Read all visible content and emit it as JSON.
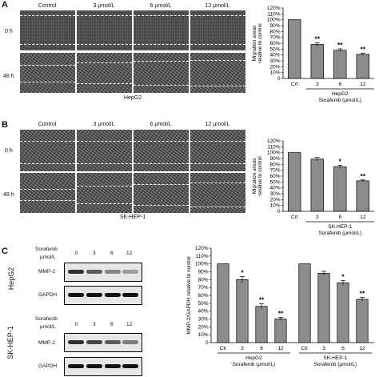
{
  "panels": {
    "A": {
      "letter": "A",
      "columns": [
        "Control",
        "3 μmol/L",
        "6 μmol/L",
        "12 μmol/L"
      ],
      "rows": [
        "0 h",
        "48 h"
      ],
      "cell_label": "HepG2"
    },
    "B": {
      "letter": "B",
      "columns": [
        "Control",
        "3 μmol/L",
        "6 μmol/L",
        "12 μmol/L"
      ],
      "rows": [
        "0 h",
        "48 h"
      ],
      "cell_label": "SK-HEP-1"
    },
    "C": {
      "letter": "C",
      "blot1": {
        "vertical_label": "HepG2",
        "header_line1": "Sorafenib",
        "header_line2": "μmol/L",
        "doses": [
          "0",
          "3",
          "6",
          "12"
        ],
        "rows": [
          "MMP-2",
          "GAPDH"
        ]
      },
      "blot2": {
        "vertical_label": "SK-HEP-1",
        "header_line1": "Sorafenib",
        "header_line2": "μmol/L",
        "doses": [
          "0",
          "3",
          "6",
          "12"
        ],
        "rows": [
          "MMP-2",
          "GAPDH"
        ]
      }
    }
  },
  "chart_data": [
    {
      "type": "bar",
      "ylabel_line1": "Migration areas",
      "ylabel_line2": "relative to control",
      "yticks": [
        "0",
        "10%",
        "20%",
        "30%",
        "40%",
        "50%",
        "60%",
        "70%",
        "80%",
        "90%",
        "100%",
        "110%",
        "120%"
      ],
      "ylim": [
        0,
        1.2
      ],
      "categories": [
        "Crt",
        "3",
        "6",
        "12"
      ],
      "values": [
        1.0,
        0.58,
        0.48,
        0.41
      ],
      "errors": [
        0,
        0.03,
        0.025,
        0.02
      ],
      "significance": [
        "",
        "**",
        "**",
        "**"
      ],
      "group_label": "HepG2",
      "xlabel": "Sorafenib (μmol/L)",
      "bar_color": "#8c8c8c"
    },
    {
      "type": "bar",
      "ylabel_line1": "Migration areas",
      "ylabel_line2": "relative to control",
      "yticks": [
        "0",
        "10%",
        "20%",
        "30%",
        "40%",
        "50%",
        "60%",
        "70%",
        "80%",
        "90%",
        "100%",
        "110%",
        "120%"
      ],
      "ylim": [
        0,
        1.2
      ],
      "categories": [
        "Crt",
        "3",
        "6",
        "12"
      ],
      "values": [
        1.0,
        0.89,
        0.76,
        0.52
      ],
      "errors": [
        0,
        0.03,
        0.025,
        0.015
      ],
      "significance": [
        "",
        "",
        "*",
        "**"
      ],
      "group_label": "SK-HEP-1",
      "xlabel": "Sorafenib (μmol/L)",
      "bar_color": "#8c8c8c"
    },
    {
      "type": "bar",
      "ylabel": "MMP-2/GAPDH relative to control",
      "yticks": [
        "0",
        "10%",
        "20%",
        "30%",
        "40%",
        "50%",
        "60%",
        "70%",
        "80%",
        "90%",
        "100%",
        "110%",
        "120%"
      ],
      "ylim": [
        0,
        1.2
      ],
      "groups": [
        {
          "categories": [
            "Ctr",
            "3",
            "6",
            "12"
          ],
          "values": [
            1.0,
            0.8,
            0.46,
            0.3
          ],
          "errors": [
            0,
            0.04,
            0.035,
            0.02
          ],
          "significance": [
            "",
            "*",
            "**",
            "**"
          ],
          "group_label": "HepG2",
          "xlabel": "Sorafenib (μmol/L)"
        },
        {
          "categories": [
            "Ctr",
            "3",
            "6",
            "12"
          ],
          "values": [
            1.0,
            0.88,
            0.76,
            0.55
          ],
          "errors": [
            0,
            0.025,
            0.03,
            0.025
          ],
          "significance": [
            "",
            "",
            "*",
            "**"
          ],
          "group_label": "SK-HEP-1",
          "xlabel": "Sorafenib (μmol/L)"
        }
      ],
      "bar_color": "#8c8c8c"
    }
  ]
}
